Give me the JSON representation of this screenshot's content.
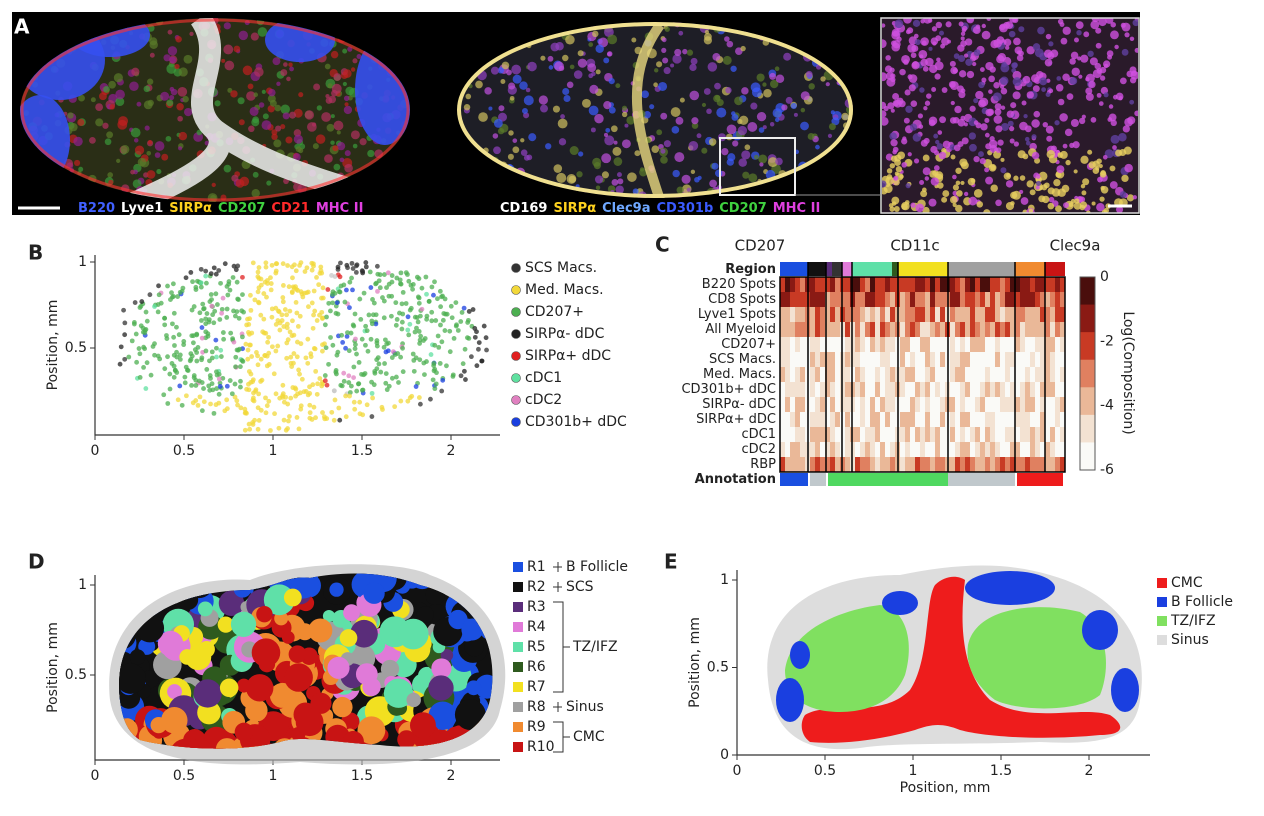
{
  "panels": [
    {
      "label": "A",
      "markers_left": [
        {
          "text": "B220",
          "color": "#4060ff"
        },
        {
          "text": "Lyve1",
          "color": "#ffffff"
        },
        {
          "text": "SIRPα",
          "color": "#ffd21e"
        },
        {
          "text": "CD207",
          "color": "#3fd23f"
        },
        {
          "text": "CD21",
          "color": "#ff2a2a"
        },
        {
          "text": "MHC II",
          "color": "#e040e0"
        }
      ],
      "markers_right": [
        {
          "text": "CD169",
          "color": "#ffffff"
        },
        {
          "text": "SIRPα",
          "color": "#ffd21e"
        },
        {
          "text": "Clec9a",
          "color": "#6fa8ff"
        },
        {
          "text": "CD301b",
          "color": "#3a5bff"
        },
        {
          "text": "CD207",
          "color": "#3fd23f"
        },
        {
          "text": "MHC II",
          "color": "#e040e0"
        }
      ]
    },
    {
      "label": "B",
      "y_label": "Position, mm",
      "x_ticks": [
        0,
        0.5,
        1,
        1.5,
        2
      ],
      "y_ticks": [
        1,
        0.5
      ],
      "legend": [
        {
          "text": "SCS Macs.",
          "color": "#333333"
        },
        {
          "text": "Med. Macs.",
          "color": "#f2d83a"
        },
        {
          "text": "CD207+",
          "color": "#4caf50"
        },
        {
          "text": "SIRPα- dDC",
          "color": "#222222"
        },
        {
          "text": "SIRPα+ dDC",
          "color": "#e02020"
        },
        {
          "text": "cDC1",
          "color": "#5fe0a0"
        },
        {
          "text": "cDC2",
          "color": "#e080c0"
        },
        {
          "text": "CD301b+ dDC",
          "color": "#1a3fe0"
        }
      ]
    },
    {
      "label": "C",
      "column_groups": [
        "CD207",
        "CD11c",
        "Clec9a"
      ],
      "rows": [
        "Region",
        "B220 Spots",
        "CD8 Spots",
        "Lyve1 Spots",
        "All Myeloid",
        "CD207+",
        "SCS Macs.",
        "Med. Macs.",
        "CD301b+ dDC",
        "SIRPα- dDC",
        "SIRPα+ dDC",
        "cDC1",
        "cDC2",
        "RBP",
        "Annotation"
      ],
      "colorbar_label": "Log(Composition)",
      "colorbar_ticks": [
        0,
        -2,
        -4,
        -6
      ]
    },
    {
      "label": "D",
      "y_label": "Position, mm",
      "x_ticks": [
        0,
        0.5,
        1,
        1.5,
        2
      ],
      "y_ticks": [
        1,
        0.5
      ],
      "legend": [
        {
          "text": "R1",
          "color": "#1a4fe0"
        },
        {
          "text": "R2",
          "color": "#111111"
        },
        {
          "text": "R3",
          "color": "#5a2d7a"
        },
        {
          "text": "R4",
          "color": "#e07ad8"
        },
        {
          "text": "R5",
          "color": "#5fe0a8"
        },
        {
          "text": "R6",
          "color": "#2e5a1e"
        },
        {
          "text": "R7",
          "color": "#f2e020"
        },
        {
          "text": "R8",
          "color": "#a0a0a0"
        },
        {
          "text": "R9",
          "color": "#f08a30"
        },
        {
          "text": "R10",
          "color": "#c81414"
        }
      ],
      "groups": [
        "B Follicle",
        "SCS",
        "TZ/IFZ",
        "Sinus",
        "CMC"
      ]
    },
    {
      "label": "E",
      "x_label": "Position, mm",
      "y_label": "Position, mm",
      "x_ticks": [
        0,
        0.5,
        1,
        1.5,
        2
      ],
      "y_ticks": [
        1,
        0.5,
        0
      ],
      "legend": [
        {
          "text": "CMC",
          "color": "#ee1c1c"
        },
        {
          "text": "B Follicle",
          "color": "#1a3fe0"
        },
        {
          "text": "TZ/IFZ",
          "color": "#80e060"
        },
        {
          "text": "Sinus",
          "color": "#dddddd"
        }
      ]
    }
  ]
}
